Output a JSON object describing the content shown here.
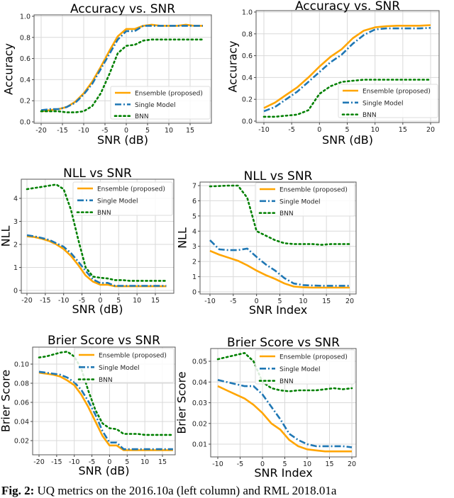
{
  "colors": {
    "ensemble": "#ffa500",
    "single": "#1f77b4",
    "bnn": "#008000"
  },
  "legend": [
    "Ensemble (proposed)",
    "Single Model",
    "BNN"
  ],
  "caption": {
    "label": "Fig. 2:",
    "text": "UQ metrics on the 2016.10a (left column) and RML 2018.01a"
  },
  "chart_data": [
    {
      "type": "line",
      "title": "Accuracy vs. SNR",
      "xlabel": "SNR (dB)",
      "ylabel": "Accuracy",
      "ylim": [
        0,
        1.0
      ],
      "grid": true,
      "legend_position": "lower-right",
      "xticks": [
        -20,
        -15,
        -10,
        -5,
        0,
        5,
        10,
        15
      ],
      "yticks": [
        "0.0",
        "0.2",
        "0.4",
        "0.6",
        "0.8",
        "1.0"
      ],
      "x": [
        -20,
        -18,
        -16,
        -14,
        -12,
        -10,
        -8,
        -6,
        -4,
        -2,
        0,
        2,
        4,
        6,
        8,
        10,
        12,
        14,
        16,
        18
      ],
      "series": [
        {
          "name": "Ensemble (proposed)",
          "values": [
            0.1,
            0.11,
            0.12,
            0.14,
            0.19,
            0.27,
            0.38,
            0.52,
            0.67,
            0.81,
            0.88,
            0.88,
            0.91,
            0.92,
            0.91,
            0.91,
            0.91,
            0.92,
            0.91,
            0.91
          ]
        },
        {
          "name": "Single Model",
          "values": [
            0.11,
            0.12,
            0.12,
            0.14,
            0.18,
            0.26,
            0.36,
            0.5,
            0.64,
            0.78,
            0.86,
            0.86,
            0.91,
            0.91,
            0.91,
            0.91,
            0.91,
            0.91,
            0.91,
            0.91
          ]
        },
        {
          "name": "BNN",
          "values": [
            0.1,
            0.1,
            0.1,
            0.09,
            0.09,
            0.1,
            0.15,
            0.27,
            0.45,
            0.65,
            0.72,
            0.73,
            0.77,
            0.78,
            0.78,
            0.78,
            0.78,
            0.78,
            0.78,
            0.78
          ]
        }
      ]
    },
    {
      "type": "line",
      "title": "Accuracy vs. SNR",
      "xlabel": "SNR (dB)",
      "ylabel": "Accuracy",
      "ylim": [
        0,
        1.0
      ],
      "grid": true,
      "legend_position": "lower-right",
      "xticks": [
        -10,
        -5,
        0,
        5,
        10,
        15,
        20
      ],
      "yticks": [
        "0.0",
        "0.2",
        "0.4",
        "0.6",
        "0.8",
        "1.0"
      ],
      "x": [
        -10,
        -8,
        -6,
        -4,
        -2,
        0,
        2,
        4,
        6,
        8,
        10,
        12,
        14,
        16,
        18,
        20
      ],
      "series": [
        {
          "name": "Ensemble (proposed)",
          "values": [
            0.12,
            0.17,
            0.24,
            0.31,
            0.4,
            0.5,
            0.59,
            0.66,
            0.76,
            0.83,
            0.86,
            0.87,
            0.875,
            0.875,
            0.875,
            0.88
          ]
        },
        {
          "name": "Single Model",
          "values": [
            0.09,
            0.13,
            0.2,
            0.27,
            0.36,
            0.45,
            0.54,
            0.61,
            0.71,
            0.79,
            0.84,
            0.85,
            0.85,
            0.85,
            0.85,
            0.855
          ]
        },
        {
          "name": "BNN",
          "values": [
            0.04,
            0.04,
            0.05,
            0.06,
            0.1,
            0.25,
            0.32,
            0.36,
            0.37,
            0.38,
            0.38,
            0.38,
            0.38,
            0.38,
            0.38,
            0.38
          ]
        }
      ]
    },
    {
      "type": "line",
      "title": "NLL vs SNR",
      "xlabel": "SNR (dB)",
      "ylabel": "NLL",
      "grid": true,
      "legend_position": "upper-right",
      "xticks": [
        -20,
        -15,
        -10,
        -5,
        0,
        5,
        10,
        15
      ],
      "yticks": [
        "0",
        "1",
        "2",
        "3",
        "4"
      ],
      "x": [
        -20,
        -18,
        -16,
        -14,
        -12,
        -10,
        -8,
        -6,
        -4,
        -2,
        0,
        2,
        4,
        6,
        8,
        10,
        12,
        14,
        16,
        18
      ],
      "series": [
        {
          "name": "Ensemble (proposed)",
          "values": [
            2.35,
            2.32,
            2.25,
            2.15,
            2.0,
            1.8,
            1.5,
            1.1,
            0.65,
            0.38,
            0.25,
            0.25,
            0.18,
            0.18,
            0.18,
            0.18,
            0.18,
            0.18,
            0.18,
            0.18
          ]
        },
        {
          "name": "Single Model",
          "values": [
            2.4,
            2.35,
            2.28,
            2.2,
            2.05,
            1.9,
            1.62,
            1.25,
            0.85,
            0.48,
            0.32,
            0.33,
            0.2,
            0.2,
            0.2,
            0.2,
            0.2,
            0.2,
            0.2,
            0.2
          ]
        },
        {
          "name": "BNN",
          "values": [
            4.4,
            4.45,
            4.5,
            4.55,
            4.6,
            4.4,
            3.5,
            2.2,
            1.0,
            0.6,
            0.55,
            0.52,
            0.45,
            0.45,
            0.42,
            0.42,
            0.42,
            0.42,
            0.42,
            0.42
          ]
        }
      ]
    },
    {
      "type": "line",
      "title": "NLL vs SNR",
      "xlabel": "SNR Index",
      "ylabel": "NLL",
      "grid": true,
      "legend_position": "upper-right",
      "xticks": [
        -10,
        -5,
        0,
        5,
        10,
        15,
        20
      ],
      "yticks": [
        "0",
        "1",
        "2",
        "3",
        "4",
        "5",
        "6",
        "7"
      ],
      "x": [
        -10,
        -8,
        -6,
        -4,
        -2,
        0,
        2,
        4,
        6,
        8,
        10,
        12,
        14,
        16,
        18,
        20
      ],
      "series": [
        {
          "name": "Ensemble (proposed)",
          "values": [
            2.7,
            2.45,
            2.25,
            2.05,
            1.75,
            1.4,
            1.1,
            0.85,
            0.55,
            0.35,
            0.3,
            0.28,
            0.28,
            0.28,
            0.28,
            0.28
          ]
        },
        {
          "name": "Single Model",
          "values": [
            3.4,
            2.8,
            2.75,
            2.75,
            2.85,
            2.3,
            1.8,
            1.4,
            0.9,
            0.55,
            0.45,
            0.42,
            0.4,
            0.4,
            0.4,
            0.4
          ]
        },
        {
          "name": "BNN",
          "values": [
            6.95,
            6.97,
            7.0,
            7.0,
            6.2,
            4.0,
            3.7,
            3.4,
            3.2,
            3.15,
            3.15,
            3.15,
            3.1,
            3.15,
            3.15,
            3.15
          ]
        }
      ]
    },
    {
      "type": "line",
      "title": "Brier Score vs SNR",
      "xlabel": "SNR (dB)",
      "ylabel": "Brier Score",
      "grid": true,
      "legend_position": "upper-right",
      "xticks": [
        -20,
        -15,
        -10,
        -5,
        0,
        5,
        10,
        15
      ],
      "yticks": [
        "0.02",
        "0.04",
        "0.06",
        "0.08",
        "0.10"
      ],
      "x": [
        -20,
        -18,
        -16,
        -14,
        -12,
        -10,
        -8,
        -6,
        -4,
        -2,
        0,
        2,
        4,
        6,
        8,
        10,
        12,
        14,
        16,
        18
      ],
      "series": [
        {
          "name": "Ensemble (proposed)",
          "values": [
            0.091,
            0.09,
            0.089,
            0.087,
            0.083,
            0.078,
            0.068,
            0.055,
            0.04,
            0.025,
            0.015,
            0.015,
            0.01,
            0.01,
            0.01,
            0.01,
            0.01,
            0.01,
            0.01,
            0.01
          ]
        },
        {
          "name": "Single Model",
          "values": [
            0.092,
            0.091,
            0.09,
            0.089,
            0.086,
            0.081,
            0.073,
            0.061,
            0.047,
            0.03,
            0.018,
            0.018,
            0.011,
            0.011,
            0.011,
            0.011,
            0.011,
            0.011,
            0.011,
            0.011
          ]
        },
        {
          "name": "BNN",
          "values": [
            0.107,
            0.108,
            0.11,
            0.112,
            0.113,
            0.108,
            0.095,
            0.072,
            0.052,
            0.038,
            0.033,
            0.032,
            0.027,
            0.027,
            0.027,
            0.026,
            0.026,
            0.026,
            0.026,
            0.026
          ]
        }
      ]
    },
    {
      "type": "line",
      "title": "Brier Score vs SNR",
      "xlabel": "SNR Index",
      "ylabel": "Brier Score",
      "grid": true,
      "legend_position": "upper-right",
      "xticks": [
        -10,
        -5,
        0,
        5,
        10,
        15,
        20
      ],
      "yticks": [
        "0.01",
        "0.02",
        "0.03",
        "0.04",
        "0.05"
      ],
      "x": [
        -10,
        -8,
        -6,
        -4,
        -2,
        0,
        2,
        4,
        6,
        8,
        10,
        12,
        14,
        16,
        18,
        20
      ],
      "series": [
        {
          "name": "Ensemble (proposed)",
          "values": [
            0.038,
            0.036,
            0.034,
            0.032,
            0.029,
            0.025,
            0.02,
            0.017,
            0.012,
            0.009,
            0.0075,
            0.007,
            0.0065,
            0.0065,
            0.0065,
            0.0065
          ]
        },
        {
          "name": "Single Model",
          "values": [
            0.041,
            0.04,
            0.039,
            0.038,
            0.038,
            0.034,
            0.028,
            0.022,
            0.015,
            0.012,
            0.01,
            0.009,
            0.009,
            0.009,
            0.009,
            0.0085
          ]
        },
        {
          "name": "BNN",
          "values": [
            0.051,
            0.052,
            0.053,
            0.054,
            0.05,
            0.04,
            0.037,
            0.036,
            0.0355,
            0.036,
            0.036,
            0.036,
            0.0365,
            0.037,
            0.0365,
            0.037
          ]
        }
      ]
    }
  ]
}
